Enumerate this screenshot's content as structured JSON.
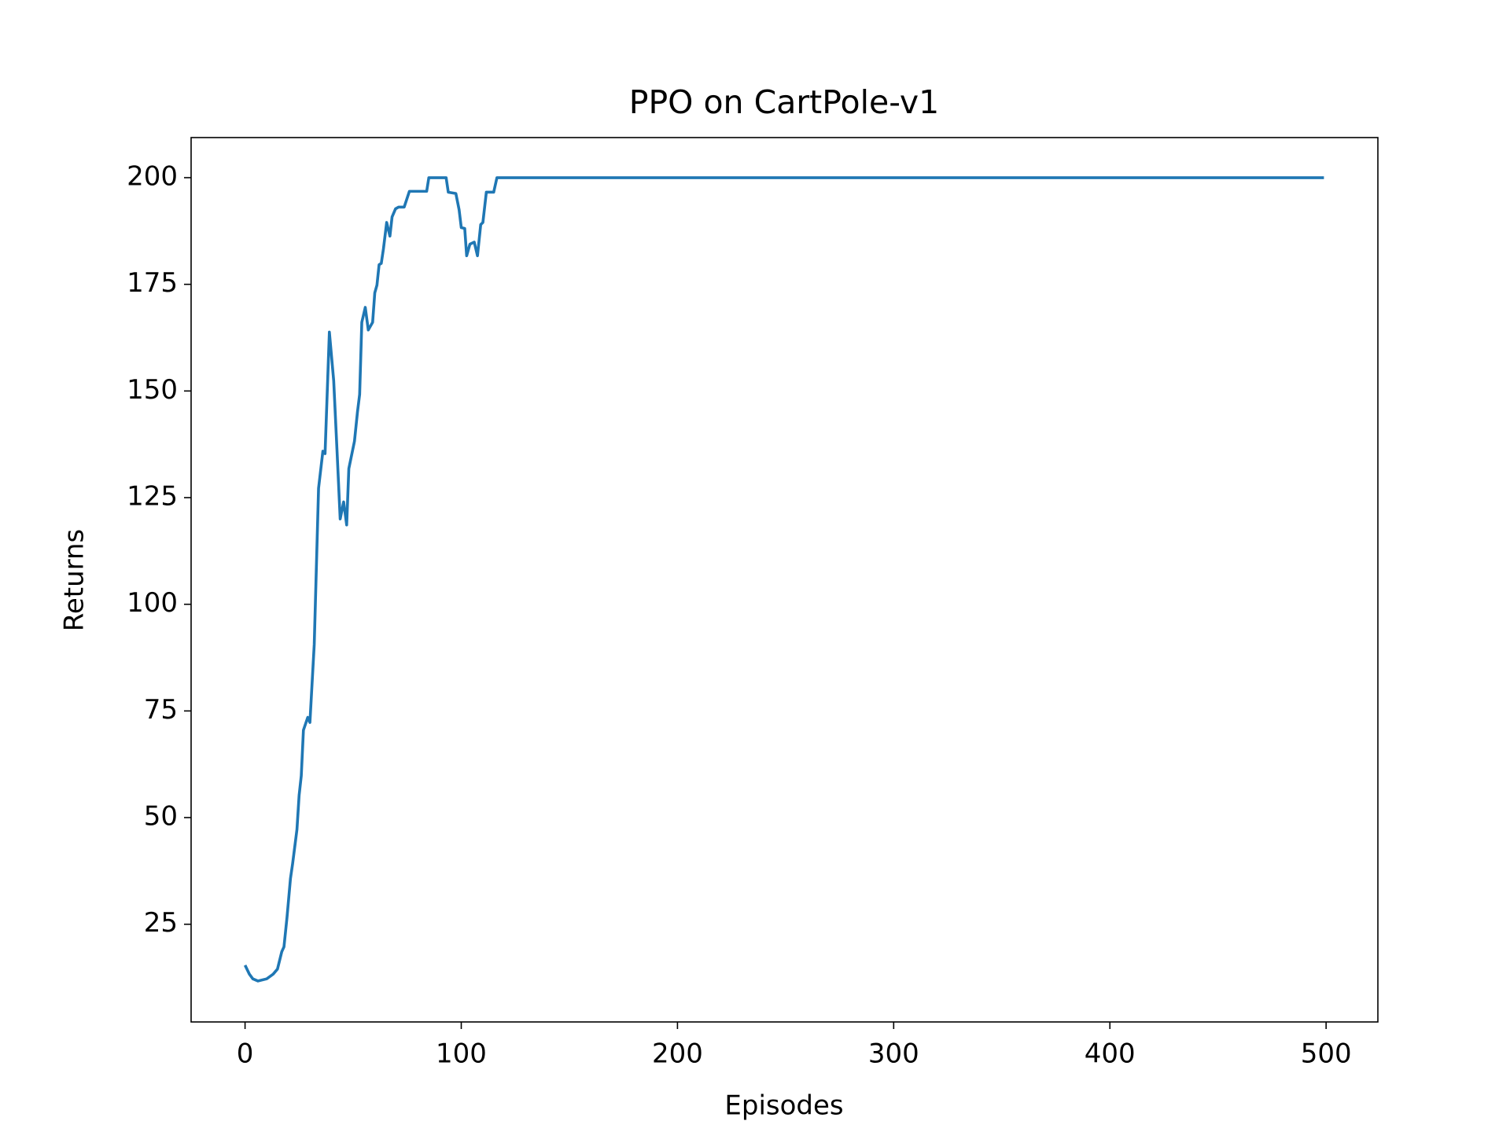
{
  "chart_data": {
    "type": "line",
    "title": "PPO on CartPole-v1",
    "x_label": "Episodes",
    "y_label": "Returns",
    "x": [
      0,
      2,
      3.6,
      6,
      10,
      13,
      15,
      17,
      18,
      19.4,
      21,
      22,
      24,
      25,
      26,
      27,
      29,
      30,
      32,
      34,
      36,
      37,
      39,
      41,
      42.5,
      44,
      45.6,
      47,
      48,
      50.6,
      52,
      53,
      54,
      55.6,
      57,
      59,
      60,
      61,
      62,
      63,
      64,
      65.5,
      67,
      68,
      69.6,
      71,
      73.6,
      76,
      84,
      85,
      93,
      94,
      97.5,
      99,
      100,
      101.6,
      102.5,
      104,
      106,
      107.5,
      109,
      110,
      111.6,
      115,
      116.5,
      499
    ],
    "series": [
      {
        "name": "Returns",
        "color": "#1f77b4",
        "values": [
          15.4,
          13.3,
          12.2,
          11.7,
          12.2,
          13.3,
          14.5,
          18.6,
          19.7,
          26.6,
          35.7,
          39.2,
          47.2,
          55.2,
          59.8,
          70.5,
          73.5,
          72.3,
          90.6,
          127.2,
          135.9,
          135.3,
          163.8,
          152.4,
          136.4,
          120,
          124,
          118.6,
          131.8,
          138.2,
          145.1,
          149.2,
          166.1,
          169.6,
          164.3,
          166.1,
          173,
          174.8,
          179.6,
          179.9,
          183.3,
          189.5,
          186.3,
          190.8,
          192.7,
          193.1,
          193.1,
          196.8,
          196.8,
          200,
          200,
          196.6,
          196.3,
          192.5,
          188.3,
          188.1,
          181.7,
          184.4,
          184.9,
          181.7,
          189,
          189.5,
          196.6,
          196.6,
          200,
          200
        ]
      }
    ],
    "xlim": [
      -24.95,
      523.95
    ],
    "ylim": [
      2.1,
      209.4
    ],
    "xticks": [
      0,
      100,
      200,
      300,
      400,
      500
    ],
    "yticks": [
      25,
      50,
      75,
      100,
      125,
      150,
      175,
      200
    ]
  }
}
